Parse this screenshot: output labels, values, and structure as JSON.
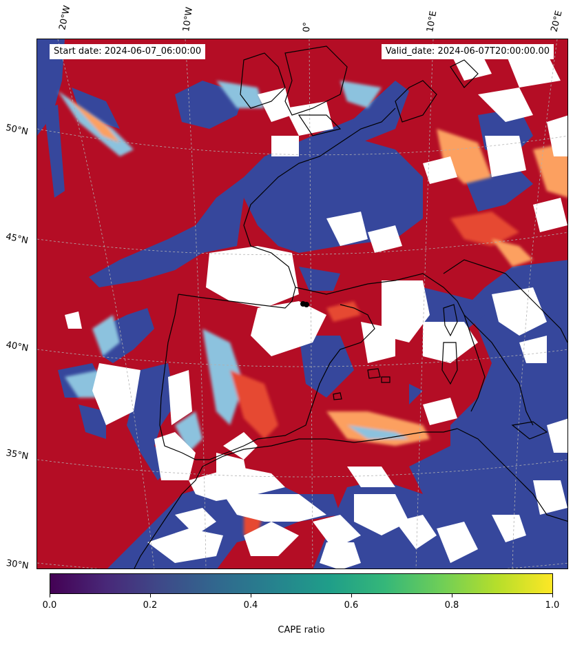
{
  "header": {
    "start_date": "Start date: 2024-06-07_06:00:00",
    "valid_date": "Valid_date: 2024-06-07T20:00:00.00"
  },
  "map": {
    "longitude_labels": [
      "20°W",
      "10°W",
      "0°",
      "10°E",
      "20°E"
    ],
    "latitude_labels": [
      "50°N",
      "45°N",
      "40°N",
      "35°N",
      "30°N"
    ],
    "colors": {
      "high": "#b40d25",
      "high_mid": "#e64a30",
      "mid": "#fca060",
      "low_mid": "#8cc2de",
      "low": "#36479c",
      "masked": "#ffffff",
      "coastline": "#000000",
      "gridline": "#b0b0b0"
    }
  },
  "colorbar": {
    "label": "CAPE ratio",
    "ticks": [
      "0.0",
      "0.2",
      "0.4",
      "0.6",
      "0.8",
      "1.0"
    ],
    "colormap": "viridis",
    "range": [
      0.0,
      1.0
    ]
  }
}
